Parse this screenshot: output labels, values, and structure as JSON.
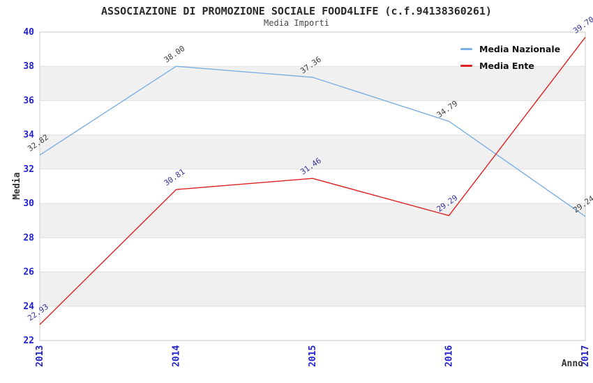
{
  "title": "ASSOCIAZIONE DI PROMOZIONE SOCIALE FOOD4LIFE (c.f.94138360261)",
  "subtitle": "Media Importi",
  "chart_data": {
    "type": "line",
    "title": "ASSOCIAZIONE DI PROMOZIONE SOCIALE FOOD4LIFE (c.f.94138360261)",
    "subtitle": "Media Importi",
    "xlabel": "Anno",
    "ylabel": "Media",
    "categories": [
      "2013",
      "2014",
      "2015",
      "2016",
      "2017"
    ],
    "series": [
      {
        "name": "Media Nazionale",
        "color": "#7cb0e2",
        "label_color": "#404040",
        "values": [
          32.82,
          38.0,
          37.36,
          34.79,
          29.24
        ]
      },
      {
        "name": "Media Ente",
        "color": "#e02020",
        "label_color": "#333399",
        "values": [
          22.93,
          30.81,
          31.46,
          29.29,
          39.7
        ]
      }
    ],
    "ylim": [
      22,
      40
    ],
    "ytick_step": 2,
    "grid": "horizontal-bands-alternating",
    "legend_position": "top-right",
    "colors": {
      "tick_label": "#2222cc",
      "band_gray": "#f0f0f0",
      "gridline": "#e0e0e0",
      "plot_border": "#c9c9c9",
      "axis_label": "#333333"
    }
  }
}
